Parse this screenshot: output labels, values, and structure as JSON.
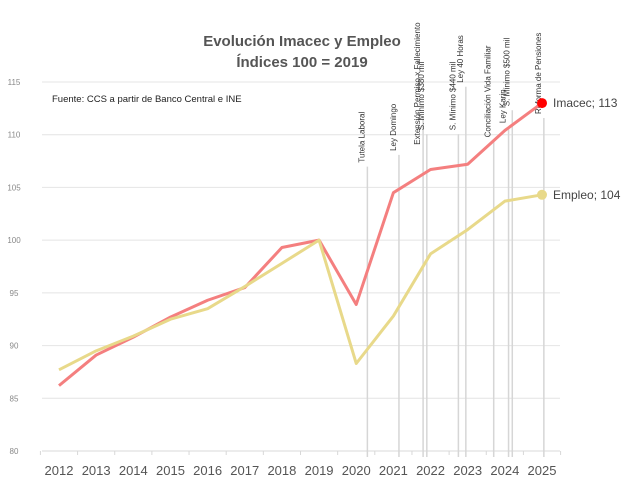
{
  "chart_data": {
    "type": "line",
    "title": "Evolución Imacec y Empleo",
    "subtitle": "Índices 100 = 2019",
    "source": "Fuente: CCS a partir de Banco Central e INE",
    "xlabel": "",
    "ylabel": "",
    "x": [
      2012,
      2013,
      2014,
      2015,
      2016,
      2017,
      2018,
      2019,
      2020,
      2021,
      2022,
      2023,
      2024,
      2025
    ],
    "x_tick_labels": [
      "2012",
      "2013",
      "2014",
      "2015",
      "2016",
      "2017",
      "2018",
      "2019",
      "2020",
      "2021",
      "2022",
      "2023",
      "2024",
      "2025"
    ],
    "ylim": [
      80,
      115
    ],
    "y_ticks": [
      80,
      85,
      90,
      95,
      100,
      105,
      110,
      115
    ],
    "y_tick_labels": [
      "80",
      "85",
      "90",
      "95",
      "100",
      "105",
      "110",
      "115"
    ],
    "grid": true,
    "legend": "end-labels",
    "series": [
      {
        "name": "Imacec",
        "color": "#f47f7f",
        "marker_color": "#ff0000",
        "end_label": "Imacec; 113",
        "values": [
          86.2,
          89.1,
          90.8,
          92.7,
          94.3,
          95.5,
          99.3,
          100.0,
          93.9,
          104.5,
          106.7,
          107.2,
          110.4,
          113.0
        ]
      },
      {
        "name": "Empleo",
        "color": "#e8d98a",
        "marker_color": "#e8d98a",
        "end_label": "Empleo; 104",
        "values": [
          87.7,
          89.5,
          90.9,
          92.5,
          93.5,
          95.6,
          97.8,
          100.0,
          88.3,
          92.8,
          98.7,
          101.0,
          103.7,
          104.3
        ]
      }
    ],
    "annotations": [
      {
        "label": "Tutela Laboral",
        "x": 2020.3
      },
      {
        "label": "Ley Domingo",
        "x": 2021.15
      },
      {
        "label": "Extensión Permiso x Fallecimiento",
        "x": 2021.8
      },
      {
        "label": "S. Mínimo $380 mil",
        "x": 2021.9
      },
      {
        "label": "S. Mínimo $440 mil",
        "x": 2022.75
      },
      {
        "label": "Ley 40 Horas",
        "x": 2022.95
      },
      {
        "label": "Conciliación Vida Familiar",
        "x": 2023.7
      },
      {
        "label": "Ley Karin",
        "x": 2024.1
      },
      {
        "label": "S. Mínimo $500 mil",
        "x": 2024.2
      },
      {
        "label": "Reforma de Pensiones",
        "x": 2025.05
      }
    ]
  }
}
